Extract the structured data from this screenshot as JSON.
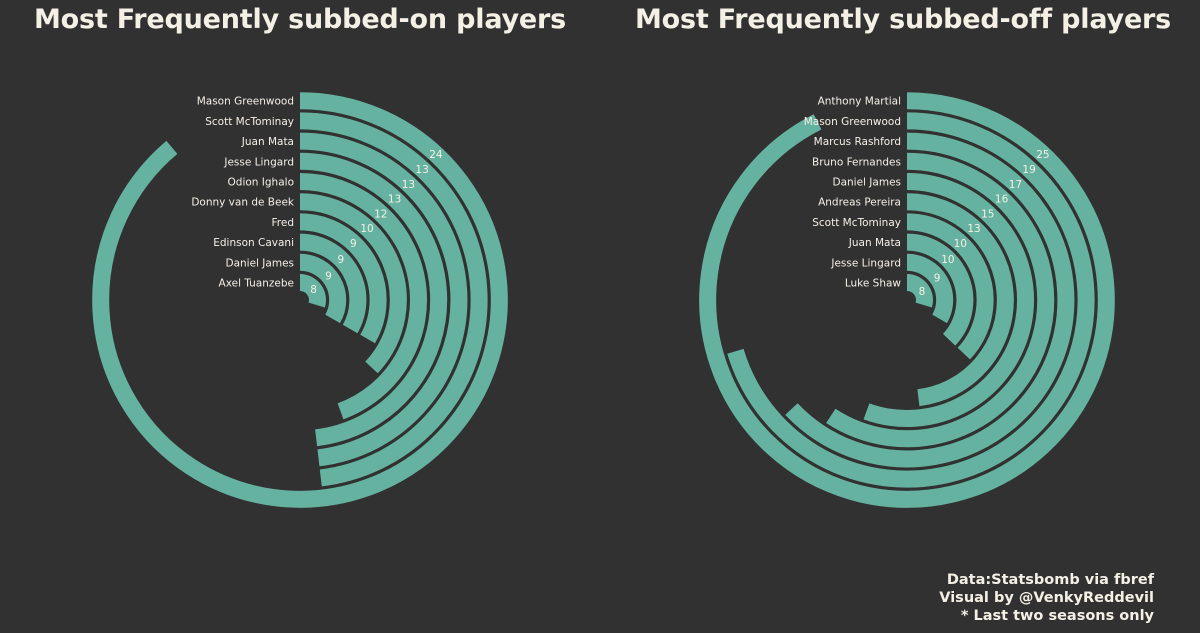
{
  "colors": {
    "background": "#313131",
    "bar": "#66b2a1",
    "text": "#f5f0e6"
  },
  "credits": {
    "line1": "Data:Statsbomb via fbref",
    "line2": "Visual by @VenkyReddevil",
    "line3": "* Last two seasons only"
  },
  "chart_data": [
    {
      "type": "radial-bar",
      "title": "Most Frequently subbed-on players",
      "categories": [
        "Mason Greenwood",
        "Scott McTominay",
        "Juan Mata",
        "Jesse Lingard",
        "Odion Ighalo",
        "Donny van de Beek",
        "Fred",
        "Edinson Cavani",
        "Daniel James",
        "Axel Tuanzebe"
      ],
      "values": [
        24,
        13,
        13,
        13,
        12,
        10,
        9,
        9,
        9,
        8
      ],
      "max": 27
    },
    {
      "type": "radial-bar",
      "title": "Most Frequently subbed-off players",
      "categories": [
        "Anthony Martial",
        "Mason Greenwood",
        "Marcus Rashford",
        "Bruno Fernandes",
        "Daniel James",
        "Andreas Pereira",
        "Scott McTominay",
        "Juan Mata",
        "Jesse Lingard",
        "Luke Shaw"
      ],
      "values": [
        25,
        19,
        17,
        16,
        15,
        13,
        10,
        10,
        9,
        8
      ],
      "max": 27
    }
  ]
}
